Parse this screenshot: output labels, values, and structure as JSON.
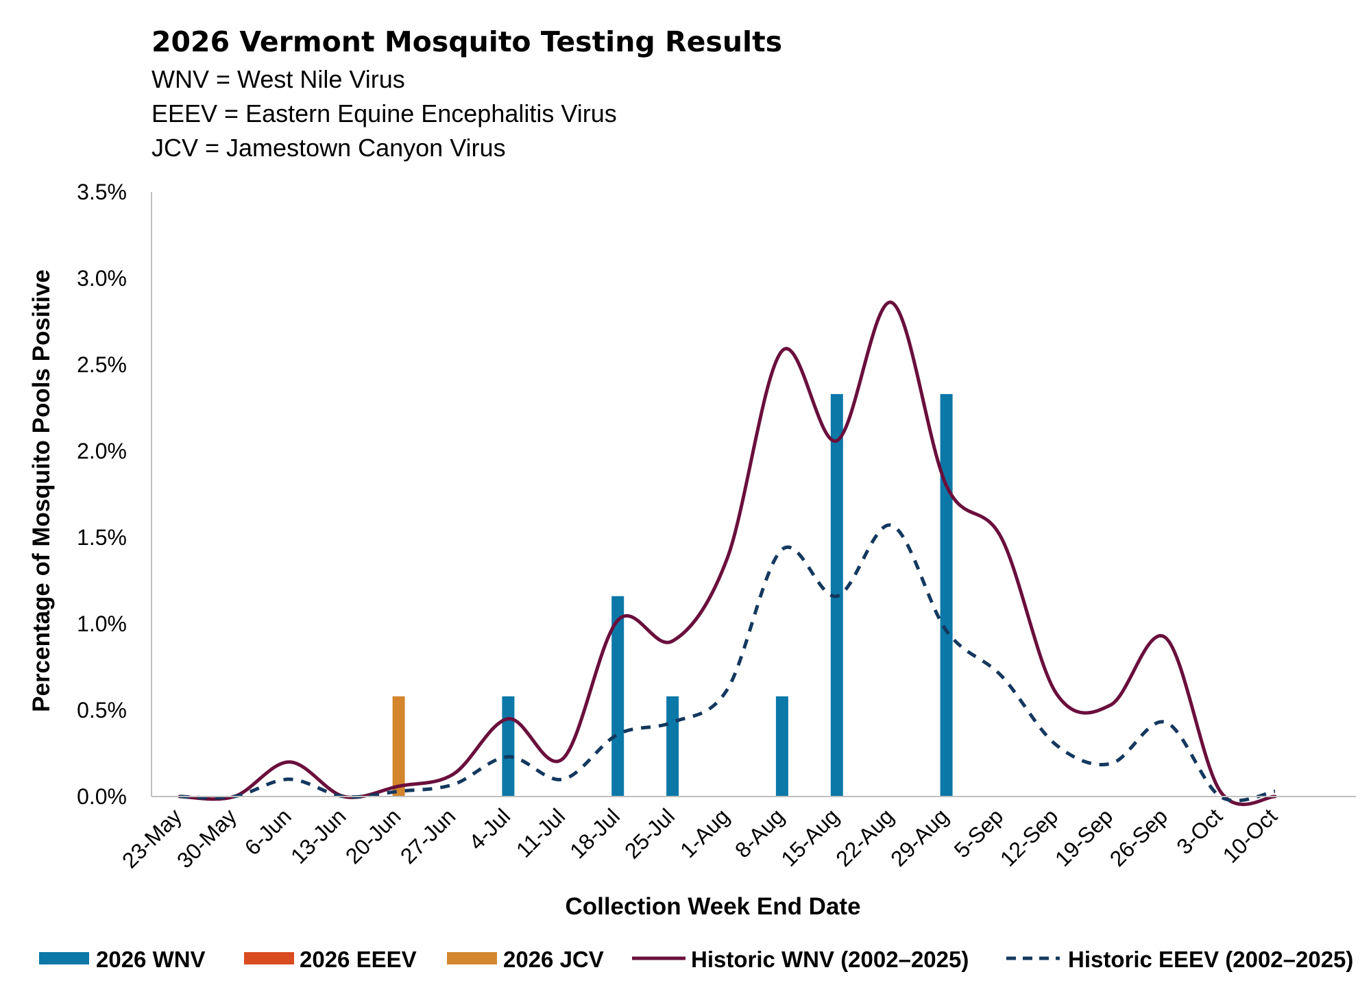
{
  "title": "2026 Vermont Mosquito Testing Results",
  "subtitle_lines": [
    "WNV = West Nile Virus",
    "EEEV = Eastern Equine Encephalitis Virus",
    "JCV = Jamestown Canyon Virus"
  ],
  "chart_data": {
    "type": "bar",
    "title": "2026 Vermont Mosquito Testing Results",
    "xlabel": "Collection Week End Date",
    "ylabel": "Percentage of Mosquito Pools Positive",
    "ylim": [
      0,
      3.5
    ],
    "yticks": [
      "0.0%",
      "0.5%",
      "1.0%",
      "1.5%",
      "2.0%",
      "2.5%",
      "3.0%",
      "3.5%"
    ],
    "grid": false,
    "legend_position": "bottom",
    "categories": [
      "23-May",
      "30-May",
      "6-Jun",
      "13-Jun",
      "20-Jun",
      "27-Jun",
      "4-Jul",
      "11-Jul",
      "18-Jul",
      "25-Jul",
      "1-Aug",
      "8-Aug",
      "15-Aug",
      "22-Aug",
      "29-Aug",
      "5-Sep",
      "12-Sep",
      "19-Sep",
      "26-Sep",
      "3-Oct",
      "10-Oct"
    ],
    "series": [
      {
        "name": "2026 WNV",
        "kind": "bar",
        "color": "#0B78A8",
        "values": [
          null,
          null,
          null,
          null,
          null,
          null,
          0.58,
          null,
          1.16,
          0.58,
          null,
          0.58,
          2.33,
          null,
          2.33,
          null,
          null,
          null,
          null,
          null,
          null
        ]
      },
      {
        "name": "2026 EEEV",
        "kind": "bar",
        "color": "#D94B20",
        "values": [
          null,
          null,
          null,
          null,
          null,
          null,
          null,
          null,
          null,
          null,
          null,
          null,
          null,
          null,
          null,
          null,
          null,
          null,
          null,
          null,
          0.0
        ]
      },
      {
        "name": "2026 JCV",
        "kind": "bar",
        "color": "#D4862F",
        "values": [
          null,
          null,
          null,
          null,
          0.58,
          null,
          null,
          null,
          null,
          null,
          null,
          null,
          null,
          null,
          null,
          null,
          null,
          null,
          null,
          null,
          null
        ]
      },
      {
        "name": "Historic WNV (2002–2025)",
        "kind": "line",
        "style": "solid",
        "color": "#6A0F3C",
        "values": [
          0.0,
          0.0,
          0.2,
          0.0,
          0.06,
          0.13,
          0.45,
          0.22,
          1.02,
          0.9,
          1.38,
          2.58,
          2.06,
          2.86,
          1.8,
          1.5,
          0.6,
          0.53,
          0.92,
          0.03,
          0.0
        ]
      },
      {
        "name": "Historic EEEV (2002–2025)",
        "kind": "line",
        "style": "dashed",
        "color": "#14385E",
        "values": [
          0.0,
          0.0,
          0.1,
          0.0,
          0.03,
          0.07,
          0.23,
          0.1,
          0.36,
          0.43,
          0.62,
          1.43,
          1.16,
          1.57,
          0.96,
          0.7,
          0.3,
          0.19,
          0.43,
          0.0,
          0.03
        ]
      }
    ]
  }
}
